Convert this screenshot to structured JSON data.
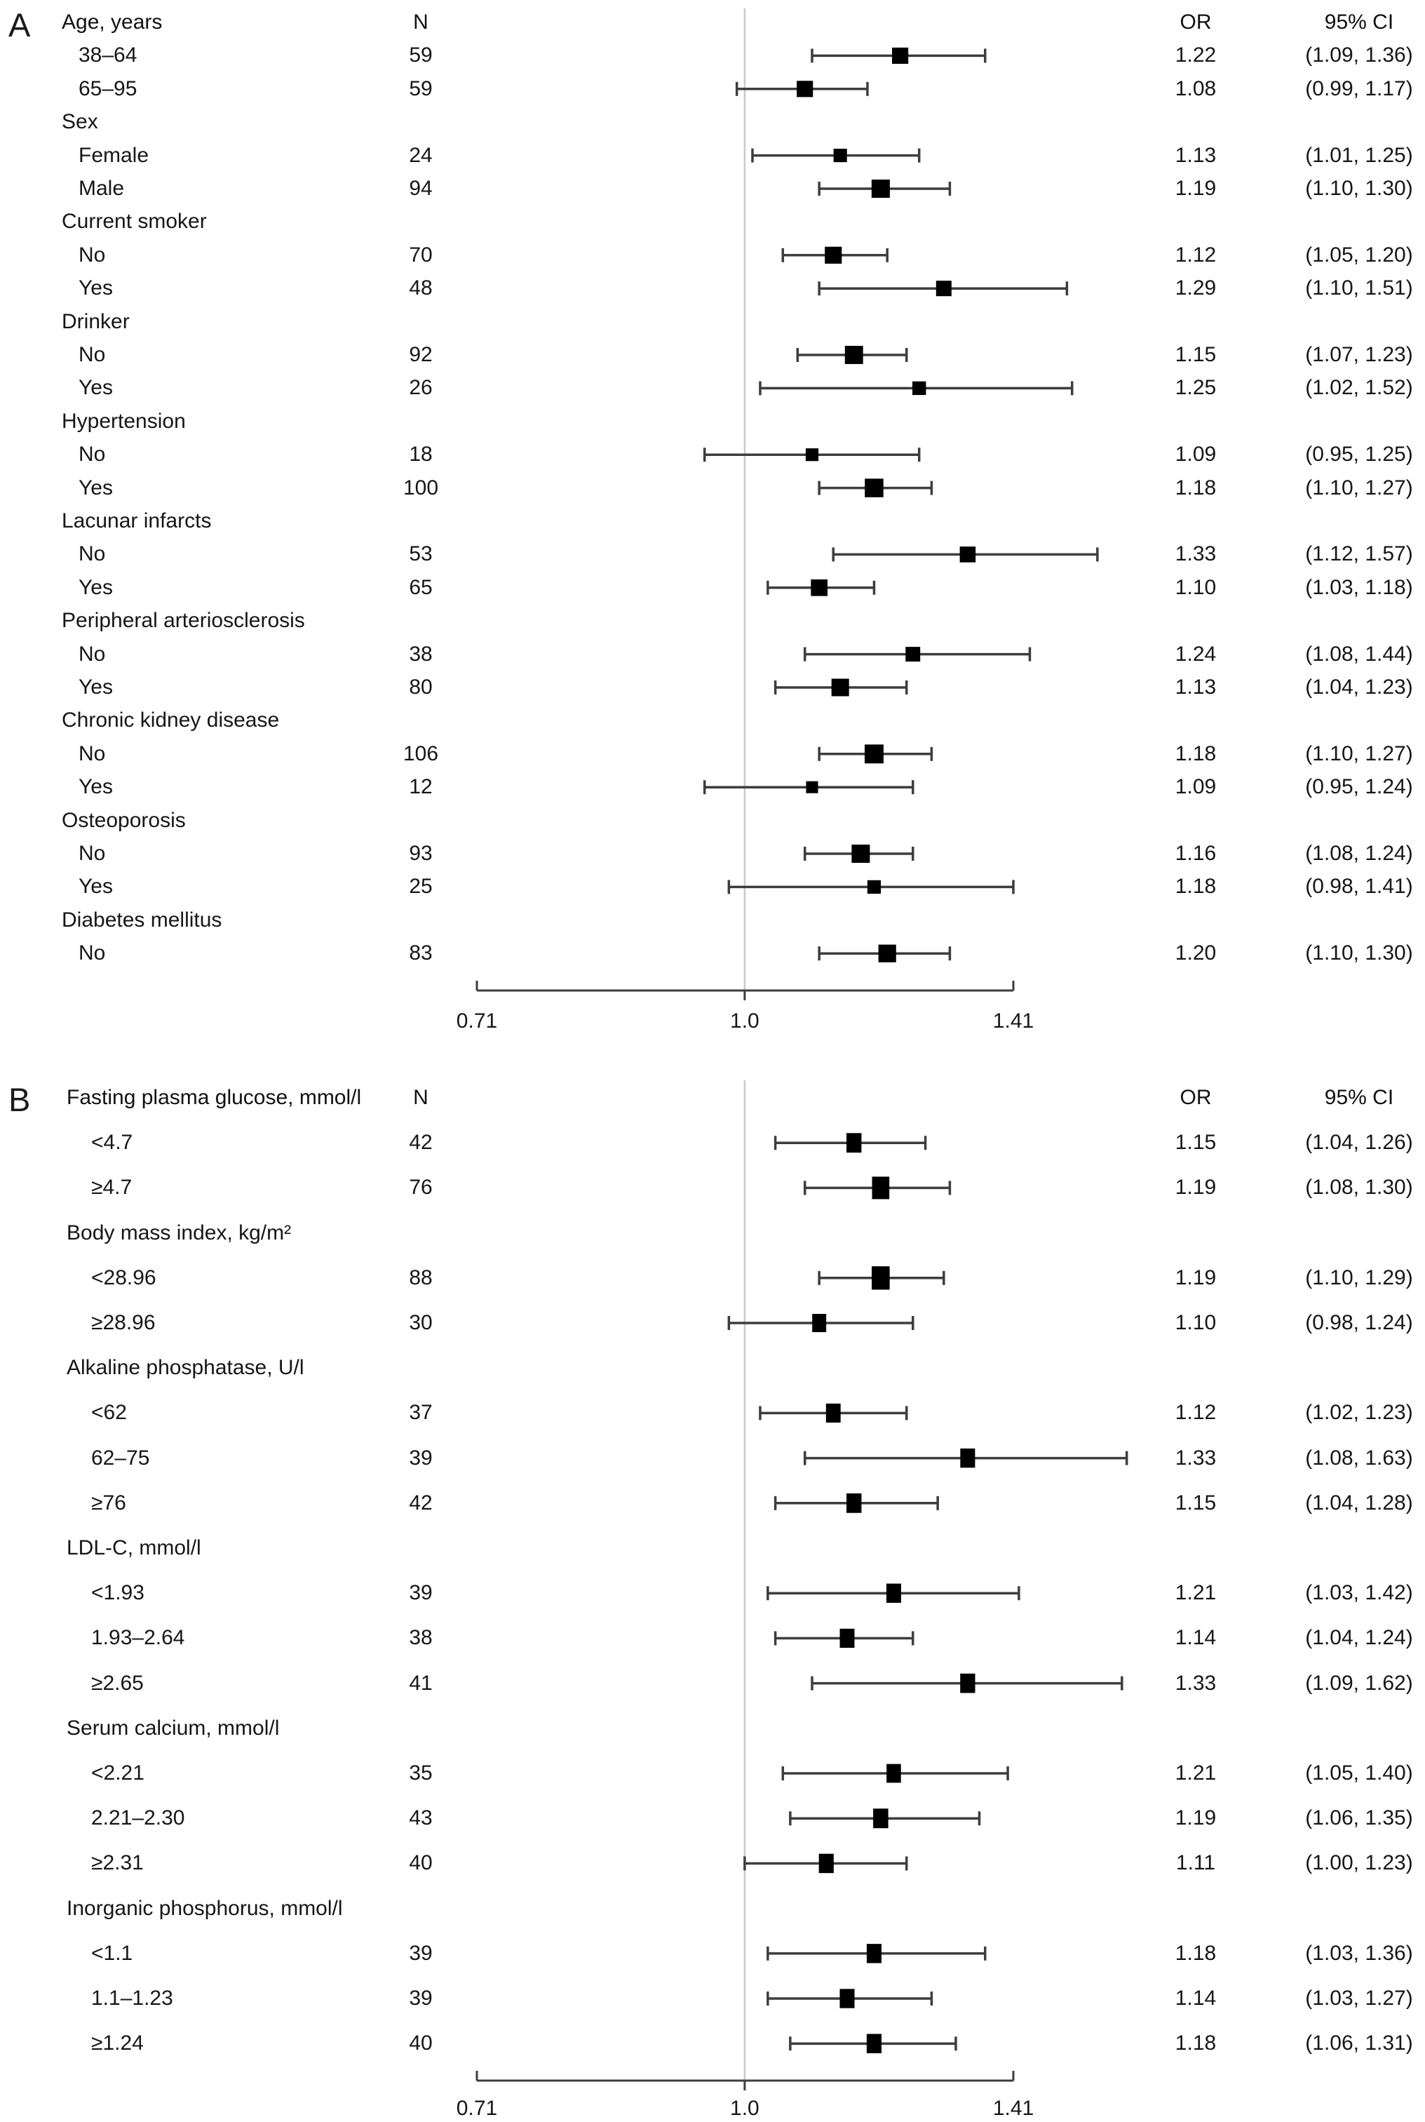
{
  "chart_data": [
    {
      "type": "forest",
      "panel": "A",
      "axis": {
        "scale": "log",
        "ticks": [
          0.71,
          1.0,
          1.41
        ],
        "tick_labels": [
          "0.71",
          "1.0",
          "1.41"
        ],
        "ref_line": 1.0
      },
      "columns": {
        "n": "N",
        "or": "OR",
        "ci": "95% CI"
      },
      "rows": [
        {
          "type": "header",
          "label": "Age, years"
        },
        {
          "type": "item",
          "label": "38–64",
          "n": 59,
          "or": 1.22,
          "lo": 1.09,
          "hi": 1.36,
          "or_text": "1.22",
          "ci_text": "(1.09, 1.36)"
        },
        {
          "type": "item",
          "label": "65–95",
          "n": 59,
          "or": 1.08,
          "lo": 0.99,
          "hi": 1.17,
          "or_text": "1.08",
          "ci_text": "(0.99, 1.17)"
        },
        {
          "type": "group",
          "label": "Sex"
        },
        {
          "type": "item",
          "label": "Female",
          "n": 24,
          "or": 1.13,
          "lo": 1.01,
          "hi": 1.25,
          "or_text": "1.13",
          "ci_text": "(1.01, 1.25)"
        },
        {
          "type": "item",
          "label": "Male",
          "n": 94,
          "or": 1.19,
          "lo": 1.1,
          "hi": 1.3,
          "or_text": "1.19",
          "ci_text": "(1.10, 1.30)"
        },
        {
          "type": "group",
          "label": "Current smoker"
        },
        {
          "type": "item",
          "label": "No",
          "n": 70,
          "or": 1.12,
          "lo": 1.05,
          "hi": 1.2,
          "or_text": "1.12",
          "ci_text": "(1.05, 1.20)"
        },
        {
          "type": "item",
          "label": "Yes",
          "n": 48,
          "or": 1.29,
          "lo": 1.1,
          "hi": 1.51,
          "or_text": "1.29",
          "ci_text": "(1.10, 1.51)"
        },
        {
          "type": "group",
          "label": "Drinker"
        },
        {
          "type": "item",
          "label": "No",
          "n": 92,
          "or": 1.15,
          "lo": 1.07,
          "hi": 1.23,
          "or_text": "1.15",
          "ci_text": "(1.07, 1.23)"
        },
        {
          "type": "item",
          "label": "Yes",
          "n": 26,
          "or": 1.25,
          "lo": 1.02,
          "hi": 1.52,
          "or_text": "1.25",
          "ci_text": "(1.02, 1.52)"
        },
        {
          "type": "group",
          "label": "Hypertension"
        },
        {
          "type": "item",
          "label": "No",
          "n": 18,
          "or": 1.09,
          "lo": 0.95,
          "hi": 1.25,
          "or_text": "1.09",
          "ci_text": "(0.95, 1.25)"
        },
        {
          "type": "item",
          "label": "Yes",
          "n": 100,
          "or": 1.18,
          "lo": 1.1,
          "hi": 1.27,
          "or_text": "1.18",
          "ci_text": "(1.10, 1.27)"
        },
        {
          "type": "group",
          "label": "Lacunar infarcts"
        },
        {
          "type": "item",
          "label": "No",
          "n": 53,
          "or": 1.33,
          "lo": 1.12,
          "hi": 1.57,
          "or_text": "1.33",
          "ci_text": "(1.12, 1.57)"
        },
        {
          "type": "item",
          "label": "Yes",
          "n": 65,
          "or": 1.1,
          "lo": 1.03,
          "hi": 1.18,
          "or_text": "1.10",
          "ci_text": "(1.03, 1.18)"
        },
        {
          "type": "group",
          "label": "Peripheral arteriosclerosis"
        },
        {
          "type": "item",
          "label": "No",
          "n": 38,
          "or": 1.24,
          "lo": 1.08,
          "hi": 1.44,
          "or_text": "1.24",
          "ci_text": "(1.08, 1.44)"
        },
        {
          "type": "item",
          "label": "Yes",
          "n": 80,
          "or": 1.13,
          "lo": 1.04,
          "hi": 1.23,
          "or_text": "1.13",
          "ci_text": "(1.04, 1.23)"
        },
        {
          "type": "group",
          "label": "Chronic kidney disease"
        },
        {
          "type": "item",
          "label": "No",
          "n": 106,
          "or": 1.18,
          "lo": 1.1,
          "hi": 1.27,
          "or_text": "1.18",
          "ci_text": "(1.10, 1.27)"
        },
        {
          "type": "item",
          "label": "Yes",
          "n": 12,
          "or": 1.09,
          "lo": 0.95,
          "hi": 1.24,
          "or_text": "1.09",
          "ci_text": "(0.95, 1.24)"
        },
        {
          "type": "group",
          "label": "Osteoporosis"
        },
        {
          "type": "item",
          "label": "No",
          "n": 93,
          "or": 1.16,
          "lo": 1.08,
          "hi": 1.24,
          "or_text": "1.16",
          "ci_text": "(1.08, 1.24)"
        },
        {
          "type": "item",
          "label": "Yes",
          "n": 25,
          "or": 1.18,
          "lo": 0.98,
          "hi": 1.41,
          "or_text": "1.18",
          "ci_text": "(0.98, 1.41)"
        },
        {
          "type": "group",
          "label": "Diabetes mellitus"
        },
        {
          "type": "item",
          "label": "No",
          "n": 83,
          "or": 1.2,
          "lo": 1.1,
          "hi": 1.3,
          "or_text": "1.20",
          "ci_text": "(1.10, 1.30)"
        }
      ]
    },
    {
      "type": "forest",
      "panel": "B",
      "axis": {
        "scale": "log",
        "ticks": [
          0.71,
          1.0,
          1.41
        ],
        "tick_labels": [
          "0.71",
          "1.0",
          "1.41"
        ],
        "ref_line": 1.0
      },
      "columns": {
        "n": "N",
        "or": "OR",
        "ci": "95% CI"
      },
      "rows": [
        {
          "type": "header",
          "label": "Fasting plasma glucose, mmol/l"
        },
        {
          "type": "item",
          "label": "<4.7",
          "n": 42,
          "or": 1.15,
          "lo": 1.04,
          "hi": 1.26,
          "or_text": "1.15",
          "ci_text": "(1.04, 1.26)"
        },
        {
          "type": "item",
          "label": "≥4.7",
          "n": 76,
          "or": 1.19,
          "lo": 1.08,
          "hi": 1.3,
          "or_text": "1.19",
          "ci_text": "(1.08, 1.30)"
        },
        {
          "type": "group",
          "label": "Body mass index, kg/m²"
        },
        {
          "type": "item",
          "label": "<28.96",
          "n": 88,
          "or": 1.19,
          "lo": 1.1,
          "hi": 1.29,
          "or_text": "1.19",
          "ci_text": "(1.10, 1.29)"
        },
        {
          "type": "item",
          "label": "≥28.96",
          "n": 30,
          "or": 1.1,
          "lo": 0.98,
          "hi": 1.24,
          "or_text": "1.10",
          "ci_text": "(0.98, 1.24)"
        },
        {
          "type": "group",
          "label": "Alkaline phosphatase, U/l"
        },
        {
          "type": "item",
          "label": "<62",
          "n": 37,
          "or": 1.12,
          "lo": 1.02,
          "hi": 1.23,
          "or_text": "1.12",
          "ci_text": "(1.02, 1.23)"
        },
        {
          "type": "item",
          "label": "62–75",
          "n": 39,
          "or": 1.33,
          "lo": 1.08,
          "hi": 1.63,
          "or_text": "1.33",
          "ci_text": "(1.08, 1.63)"
        },
        {
          "type": "item",
          "label": "≥76",
          "n": 42,
          "or": 1.15,
          "lo": 1.04,
          "hi": 1.28,
          "or_text": "1.15",
          "ci_text": "(1.04, 1.28)"
        },
        {
          "type": "group",
          "label": "LDL-C, mmol/l"
        },
        {
          "type": "item",
          "label": "<1.93",
          "n": 39,
          "or": 1.21,
          "lo": 1.03,
          "hi": 1.42,
          "or_text": "1.21",
          "ci_text": "(1.03, 1.42)"
        },
        {
          "type": "item",
          "label": "1.93–2.64",
          "n": 38,
          "or": 1.14,
          "lo": 1.04,
          "hi": 1.24,
          "or_text": "1.14",
          "ci_text": "(1.04, 1.24)"
        },
        {
          "type": "item",
          "label": "≥2.65",
          "n": 41,
          "or": 1.33,
          "lo": 1.09,
          "hi": 1.62,
          "or_text": "1.33",
          "ci_text": "(1.09, 1.62)"
        },
        {
          "type": "group",
          "label": "Serum calcium, mmol/l"
        },
        {
          "type": "item",
          "label": "<2.21",
          "n": 35,
          "or": 1.21,
          "lo": 1.05,
          "hi": 1.4,
          "or_text": "1.21",
          "ci_text": "(1.05, 1.40)"
        },
        {
          "type": "item",
          "label": "2.21–2.30",
          "n": 43,
          "or": 1.19,
          "lo": 1.06,
          "hi": 1.35,
          "or_text": "1.19",
          "ci_text": "(1.06, 1.35)"
        },
        {
          "type": "item",
          "label": "≥2.31",
          "n": 40,
          "or": 1.11,
          "lo": 1.0,
          "hi": 1.23,
          "or_text": "1.11",
          "ci_text": "(1.00, 1.23)"
        },
        {
          "type": "group",
          "label": "Inorganic phosphorus, mmol/l"
        },
        {
          "type": "item",
          "label": "<1.1",
          "n": 39,
          "or": 1.18,
          "lo": 1.03,
          "hi": 1.36,
          "or_text": "1.18",
          "ci_text": "(1.03, 1.36)"
        },
        {
          "type": "item",
          "label": "1.1–1.23",
          "n": 39,
          "or": 1.14,
          "lo": 1.03,
          "hi": 1.27,
          "or_text": "1.14",
          "ci_text": "(1.03, 1.27)"
        },
        {
          "type": "item",
          "label": "≥1.24",
          "n": 40,
          "or": 1.18,
          "lo": 1.06,
          "hi": 1.31,
          "or_text": "1.18",
          "ci_text": "(1.06, 1.31)"
        }
      ]
    }
  ],
  "colors": {
    "marker": "#000000",
    "whisker": "#3d3d3d",
    "axis": "#3d3d3d",
    "ref_line": "#c9c9c9",
    "text": "#161616"
  }
}
